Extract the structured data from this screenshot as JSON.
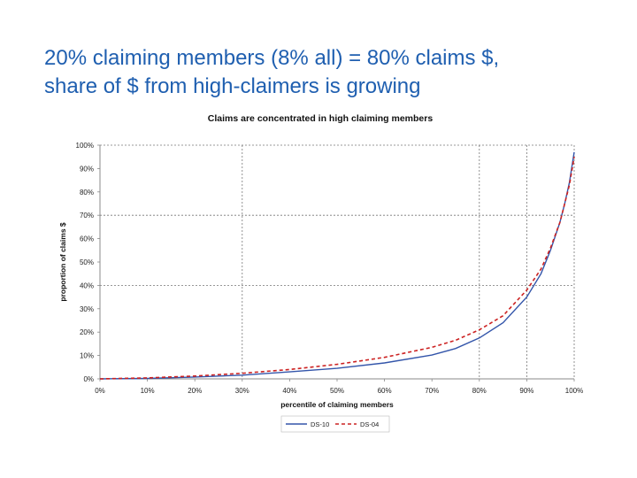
{
  "slide": {
    "title_line1": "20% claiming members (8% all) = 80% claims $,",
    "title_line2": "share of $ from high-claimers is growing"
  },
  "chart_data": {
    "type": "line",
    "title": "Claims are concentrated in high claiming members",
    "xlabel": "percentile of claiming members",
    "ylabel": "proportion of claims $",
    "x_ticks": [
      "0%",
      "10%",
      "20%",
      "30%",
      "40%",
      "50%",
      "60%",
      "70%",
      "80%",
      "90%",
      "100%"
    ],
    "y_ticks": [
      "0%",
      "10%",
      "20%",
      "30%",
      "40%",
      "50%",
      "60%",
      "70%",
      "80%",
      "90%",
      "100%"
    ],
    "xlim": [
      0,
      100
    ],
    "ylim": [
      0,
      100
    ],
    "gridlines_x": [
      30,
      80,
      90,
      100
    ],
    "gridlines_y": [
      40,
      70,
      100
    ],
    "legend_position": "bottom",
    "series": [
      {
        "name": "DS-10",
        "color": "#3355aa",
        "style": "solid",
        "x": [
          0,
          10,
          20,
          30,
          40,
          50,
          60,
          70,
          75,
          80,
          85,
          90,
          93,
          95,
          97,
          98,
          99,
          100
        ],
        "y": [
          0,
          0.2,
          0.8,
          1.6,
          3.0,
          4.5,
          6.8,
          10.2,
          13,
          17.5,
          24,
          35,
          45,
          55,
          67,
          75,
          84,
          97
        ]
      },
      {
        "name": "DS-04",
        "color": "#cc2222",
        "style": "dashed",
        "x": [
          0,
          10,
          20,
          30,
          40,
          50,
          60,
          70,
          75,
          80,
          85,
          90,
          93,
          95,
          97,
          98,
          99,
          100
        ],
        "y": [
          0,
          0.4,
          1.2,
          2.4,
          4.0,
          6.2,
          9.2,
          13.5,
          16.5,
          21,
          27,
          38,
          47,
          56,
          67,
          75,
          83,
          95
        ]
      }
    ]
  }
}
